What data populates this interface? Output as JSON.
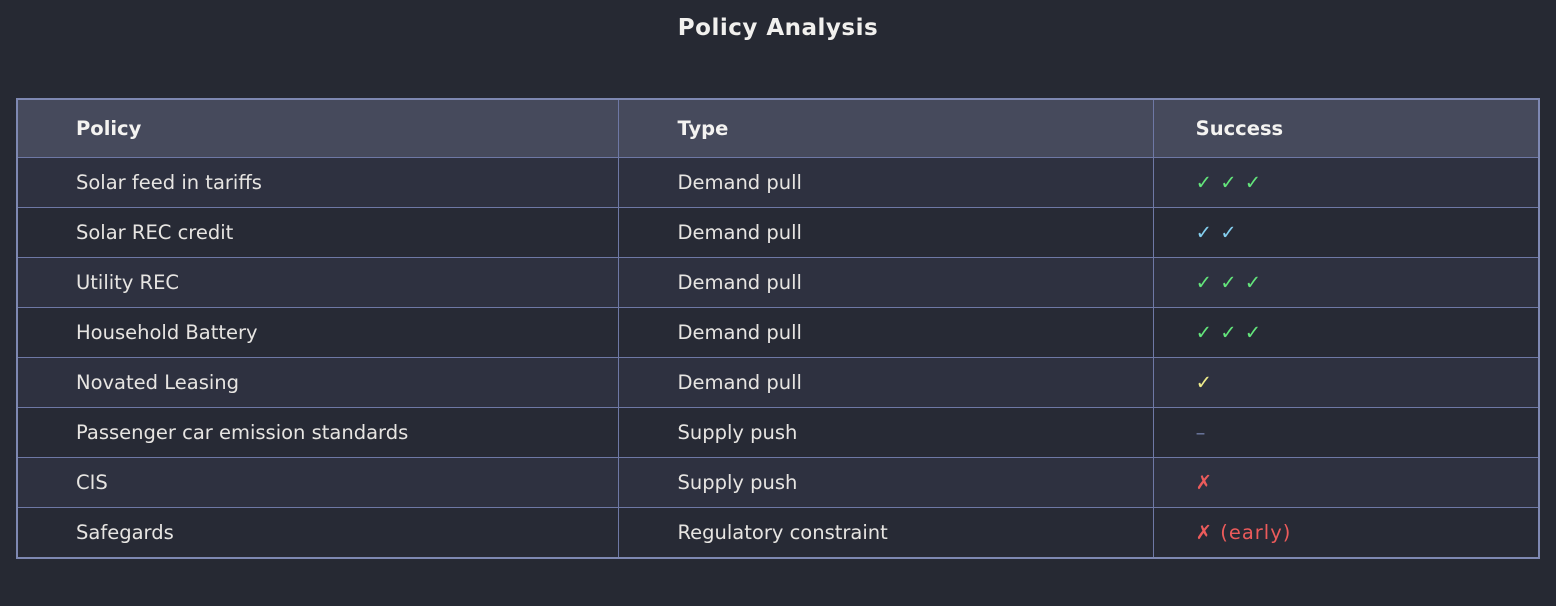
{
  "title": "Policy Analysis",
  "colors": {
    "page_background": "#262933",
    "header_background": "#464a5c",
    "row_odd_background": "#2e3140",
    "row_even_background": "#272a35",
    "border": "#6e78a5",
    "success": {
      "green": "#63e57b",
      "blue": "#84cfef",
      "yellow": "#efec8b",
      "red": "#ec5b5b",
      "muted": "#6e7aa3"
    }
  },
  "table": {
    "columns": [
      "Policy",
      "Type",
      "Success"
    ],
    "rows": [
      {
        "policy": "Solar feed in tariffs",
        "type": "Demand pull",
        "success": "✓ ✓ ✓",
        "success_color": "green"
      },
      {
        "policy": "Solar REC credit",
        "type": "Demand pull",
        "success": "✓ ✓",
        "success_color": "blue"
      },
      {
        "policy": "Utility REC",
        "type": "Demand pull",
        "success": "✓ ✓ ✓",
        "success_color": "green"
      },
      {
        "policy": "Household Battery",
        "type": "Demand pull",
        "success": "✓ ✓ ✓",
        "success_color": "green"
      },
      {
        "policy": "Novated Leasing",
        "type": "Demand pull",
        "success": "✓",
        "success_color": "yellow"
      },
      {
        "policy": "Passenger car emission standards",
        "type": "Supply push",
        "success": "–",
        "success_color": "muted"
      },
      {
        "policy": "CIS",
        "type": "Supply push",
        "success": "✗",
        "success_color": "red"
      },
      {
        "policy": "Safegards",
        "type": "Regulatory constraint",
        "success": "✗ (early)",
        "success_color": "red"
      }
    ]
  }
}
